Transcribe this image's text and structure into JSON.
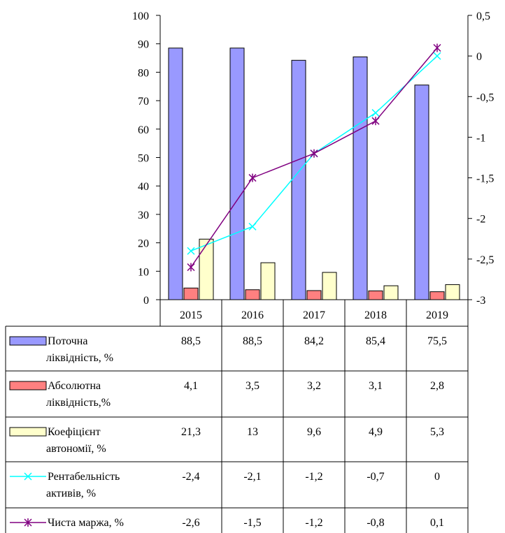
{
  "chart_data": {
    "type": "bar",
    "categories": [
      "2015",
      "2016",
      "2017",
      "2018",
      "2019"
    ],
    "series": [
      {
        "name": "Поточна ліквідність, %",
        "name_lines": [
          "Поточна",
          "ліквідність, %"
        ],
        "kind": "bar",
        "axis": "left",
        "color": "#9999ff",
        "values": [
          88.5,
          88.5,
          84.2,
          85.4,
          75.5
        ],
        "labels": [
          "88,5",
          "88,5",
          "84,2",
          "85,4",
          "75,5"
        ]
      },
      {
        "name": "Абсолютна ліквідність,%",
        "name_lines": [
          "Абсолютна",
          "ліквідність,%"
        ],
        "kind": "bar",
        "axis": "left",
        "color": "#ff8080",
        "values": [
          4.1,
          3.5,
          3.2,
          3.1,
          2.8
        ],
        "labels": [
          "4,1",
          "3,5",
          "3,2",
          "3,1",
          "2,8"
        ]
      },
      {
        "name": "Коефіцієнт автономії, %",
        "name_lines": [
          "Коефіцієнт",
          "автономії, %"
        ],
        "kind": "bar",
        "axis": "left",
        "color": "#ffffcc",
        "values": [
          21.3,
          13,
          9.6,
          4.9,
          5.3
        ],
        "labels": [
          "21,3",
          "13",
          "9,6",
          "4,9",
          "5,3"
        ]
      },
      {
        "name": "Рентабельність активів, %",
        "name_lines": [
          "Рентабельність",
          "активів, %"
        ],
        "kind": "line",
        "axis": "right",
        "color": "#00ffff",
        "marker": "x",
        "values": [
          -2.4,
          -2.1,
          -1.2,
          -0.7,
          0
        ],
        "labels": [
          "-2,4",
          "-2,1",
          "-1,2",
          "-0,7",
          "0"
        ]
      },
      {
        "name": "Чиста маржа, %",
        "name_lines": [
          "Чиста маржа, %"
        ],
        "kind": "line",
        "axis": "right",
        "color": "#800080",
        "marker": "asterisk",
        "values": [
          -2.6,
          -1.5,
          -1.2,
          -0.8,
          0.1
        ],
        "labels": [
          "-2,6",
          "-1,5",
          "-1,2",
          "-0,8",
          "0,1"
        ]
      }
    ],
    "y_left": {
      "lim": [
        0,
        100
      ],
      "ticks": [
        0,
        10,
        20,
        30,
        40,
        50,
        60,
        70,
        80,
        90,
        100
      ],
      "tick_labels": [
        "0",
        "10",
        "20",
        "30",
        "40",
        "50",
        "60",
        "70",
        "80",
        "90",
        "100"
      ]
    },
    "y_right": {
      "lim": [
        -3,
        0.5
      ],
      "ticks": [
        -3,
        -2.5,
        -2,
        -1.5,
        -1,
        -0.5,
        0,
        0.5
      ],
      "tick_labels": [
        "-3",
        "-2,5",
        "-2",
        "-1,5",
        "-1",
        "-0,5",
        "0",
        "0,5"
      ]
    },
    "legend_placement": "data table below chart",
    "grid": false
  }
}
